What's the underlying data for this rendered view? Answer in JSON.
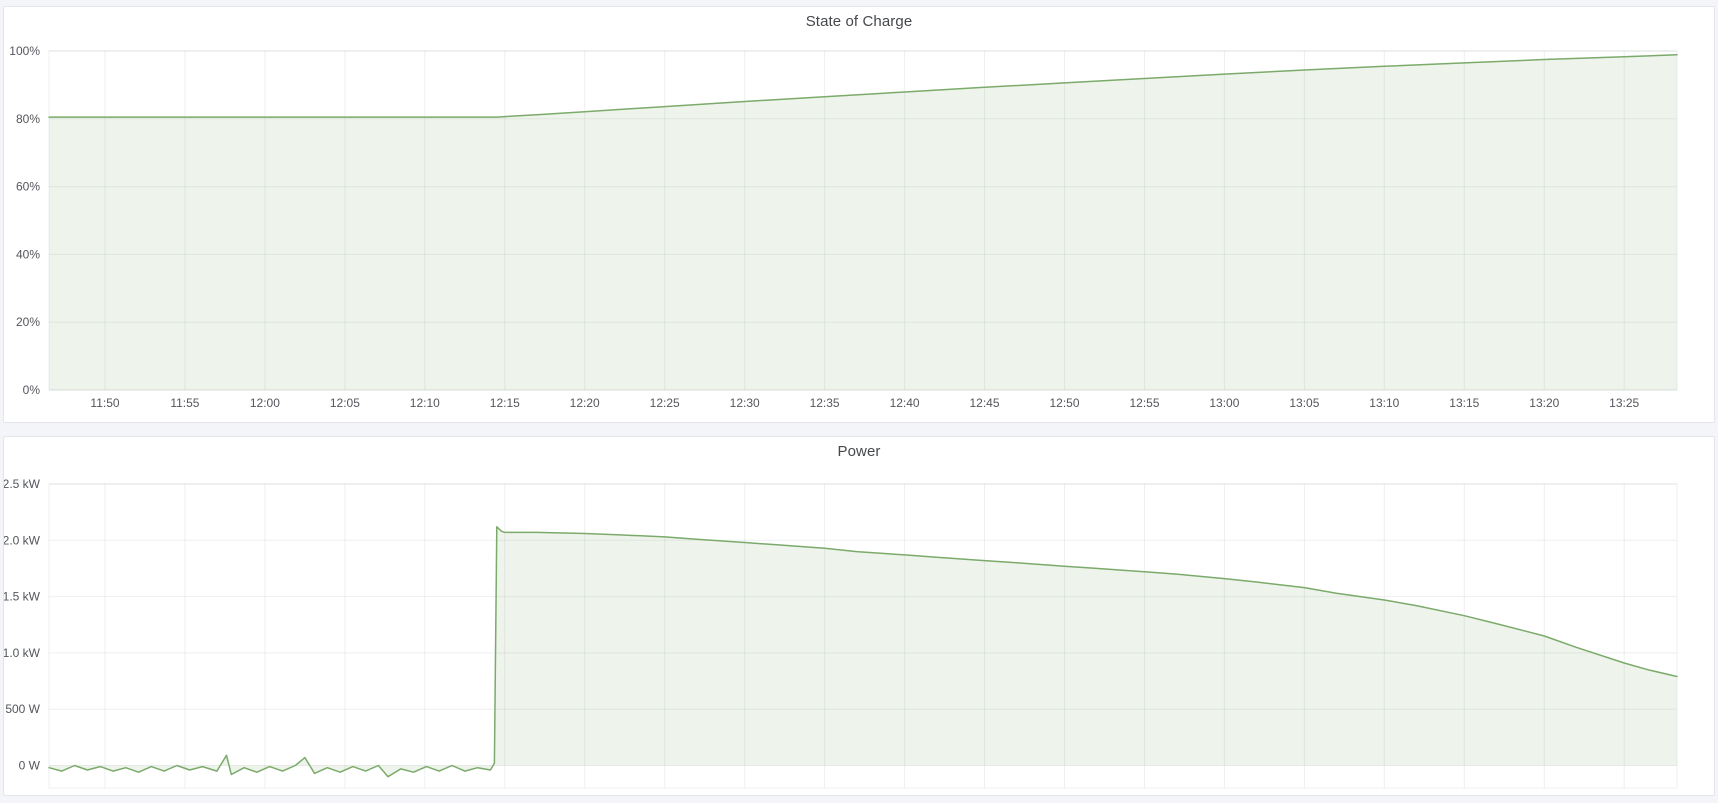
{
  "panels": [
    {
      "title": "State of Charge"
    },
    {
      "title": "Power"
    }
  ],
  "colors": {
    "line_green": "#7baa6b",
    "fill_green": "rgba(120,169,103,0.13)",
    "grid": "rgba(20,30,40,0.07)",
    "axis_text": "#54565c",
    "panel_bg": "#ffffff",
    "page_bg": "#f4f5f9",
    "panel_border": "#e4e5ea"
  },
  "chart_data": [
    {
      "type": "area",
      "title": "State of Charge",
      "xlabel": "",
      "ylabel": "",
      "unit": "percent",
      "legend": "none",
      "grid": true,
      "x_domain_minutes": [
        706.5,
        808.3
      ],
      "y_domain": [
        0,
        100
      ],
      "y_ticks": [
        {
          "value": 0,
          "label": "0%"
        },
        {
          "value": 20,
          "label": "20%"
        },
        {
          "value": 40,
          "label": "40%"
        },
        {
          "value": 60,
          "label": "60%"
        },
        {
          "value": 80,
          "label": "80%"
        },
        {
          "value": 100,
          "label": "100%"
        }
      ],
      "x_ticks": [
        {
          "minute": 710,
          "label": "11:50"
        },
        {
          "minute": 715,
          "label": "11:55"
        },
        {
          "minute": 720,
          "label": "12:00"
        },
        {
          "minute": 725,
          "label": "12:05"
        },
        {
          "minute": 730,
          "label": "12:10"
        },
        {
          "minute": 735,
          "label": "12:15"
        },
        {
          "minute": 740,
          "label": "12:20"
        },
        {
          "minute": 745,
          "label": "12:25"
        },
        {
          "minute": 750,
          "label": "12:30"
        },
        {
          "minute": 755,
          "label": "12:35"
        },
        {
          "minute": 760,
          "label": "12:40"
        },
        {
          "minute": 765,
          "label": "12:45"
        },
        {
          "minute": 770,
          "label": "12:50"
        },
        {
          "minute": 775,
          "label": "12:55"
        },
        {
          "minute": 780,
          "label": "13:00"
        },
        {
          "minute": 785,
          "label": "13:05"
        },
        {
          "minute": 790,
          "label": "13:10"
        },
        {
          "minute": 795,
          "label": "13:15"
        },
        {
          "minute": 800,
          "label": "13:20"
        },
        {
          "minute": 805,
          "label": "13:25"
        }
      ],
      "series": [
        {
          "name": "state-of-charge",
          "points": [
            [
              706.5,
              80.5
            ],
            [
              710,
              80.5
            ],
            [
              715,
              80.5
            ],
            [
              720,
              80.5
            ],
            [
              725,
              80.5
            ],
            [
              730,
              80.5
            ],
            [
              734.5,
              80.5
            ],
            [
              737,
              81.2
            ],
            [
              740,
              82.1
            ],
            [
              745,
              83.6
            ],
            [
              750,
              85.1
            ],
            [
              755,
              86.5
            ],
            [
              760,
              87.9
            ],
            [
              765,
              89.3
            ],
            [
              770,
              90.6
            ],
            [
              775,
              91.9
            ],
            [
              780,
              93.2
            ],
            [
              785,
              94.4
            ],
            [
              790,
              95.5
            ],
            [
              795,
              96.5
            ],
            [
              800,
              97.5
            ],
            [
              805,
              98.3
            ],
            [
              808.3,
              98.9
            ]
          ]
        }
      ]
    },
    {
      "type": "area",
      "title": "Power",
      "xlabel": "",
      "ylabel": "",
      "unit": "watt",
      "legend": "none",
      "grid": true,
      "x_axis_labels_visible": false,
      "x_domain_minutes": [
        706.5,
        808.3
      ],
      "y_domain": [
        -0.2,
        2.5
      ],
      "y_ticks": [
        {
          "value": 0,
          "label": "0 W"
        },
        {
          "value": 0.5,
          "label": "500 W"
        },
        {
          "value": 1.0,
          "label": "1.0 kW"
        },
        {
          "value": 1.5,
          "label": "1.5 kW"
        },
        {
          "value": 2.0,
          "label": "2.0 kW"
        },
        {
          "value": 2.5,
          "label": "2.5 kW"
        }
      ],
      "x_ticks": [
        {
          "minute": 710,
          "label": "11:50"
        },
        {
          "minute": 715,
          "label": "11:55"
        },
        {
          "minute": 720,
          "label": "12:00"
        },
        {
          "minute": 725,
          "label": "12:05"
        },
        {
          "minute": 730,
          "label": "12:10"
        },
        {
          "minute": 735,
          "label": "12:15"
        },
        {
          "minute": 740,
          "label": "12:20"
        },
        {
          "minute": 745,
          "label": "12:25"
        },
        {
          "minute": 750,
          "label": "12:30"
        },
        {
          "minute": 755,
          "label": "12:35"
        },
        {
          "minute": 760,
          "label": "12:40"
        },
        {
          "minute": 765,
          "label": "12:45"
        },
        {
          "minute": 770,
          "label": "12:50"
        },
        {
          "minute": 775,
          "label": "12:55"
        },
        {
          "minute": 780,
          "label": "13:00"
        },
        {
          "minute": 785,
          "label": "13:05"
        },
        {
          "minute": 790,
          "label": "13:10"
        },
        {
          "minute": 795,
          "label": "13:15"
        },
        {
          "minute": 800,
          "label": "13:20"
        },
        {
          "minute": 805,
          "label": "13:25"
        }
      ],
      "series": [
        {
          "name": "power",
          "points": [
            [
              706.5,
              -0.02
            ],
            [
              707.3,
              -0.05
            ],
            [
              708.1,
              0.0
            ],
            [
              708.9,
              -0.04
            ],
            [
              709.7,
              -0.01
            ],
            [
              710.5,
              -0.05
            ],
            [
              711.3,
              -0.02
            ],
            [
              712.1,
              -0.06
            ],
            [
              712.9,
              -0.01
            ],
            [
              713.7,
              -0.05
            ],
            [
              714.5,
              0.0
            ],
            [
              715.3,
              -0.04
            ],
            [
              716.1,
              -0.01
            ],
            [
              717.0,
              -0.05
            ],
            [
              717.6,
              0.09
            ],
            [
              717.9,
              -0.08
            ],
            [
              718.7,
              -0.02
            ],
            [
              719.5,
              -0.06
            ],
            [
              720.3,
              -0.01
            ],
            [
              721.1,
              -0.05
            ],
            [
              721.9,
              0.0
            ],
            [
              722.5,
              0.07
            ],
            [
              723.1,
              -0.07
            ],
            [
              723.9,
              -0.02
            ],
            [
              724.7,
              -0.06
            ],
            [
              725.5,
              -0.01
            ],
            [
              726.3,
              -0.05
            ],
            [
              727.1,
              0.0
            ],
            [
              727.7,
              -0.1
            ],
            [
              728.5,
              -0.03
            ],
            [
              729.3,
              -0.06
            ],
            [
              730.1,
              -0.01
            ],
            [
              730.9,
              -0.05
            ],
            [
              731.7,
              0.0
            ],
            [
              732.5,
              -0.05
            ],
            [
              733.3,
              -0.02
            ],
            [
              734.1,
              -0.04
            ],
            [
              734.35,
              0.02
            ],
            [
              734.5,
              2.12
            ],
            [
              734.8,
              2.08
            ],
            [
              735,
              2.07
            ],
            [
              737,
              2.07
            ],
            [
              740,
              2.06
            ],
            [
              742,
              2.05
            ],
            [
              745,
              2.03
            ],
            [
              747,
              2.01
            ],
            [
              750,
              1.98
            ],
            [
              752,
              1.96
            ],
            [
              755,
              1.93
            ],
            [
              757,
              1.9
            ],
            [
              760,
              1.87
            ],
            [
              762,
              1.85
            ],
            [
              765,
              1.82
            ],
            [
              767,
              1.8
            ],
            [
              770,
              1.77
            ],
            [
              772,
              1.75
            ],
            [
              775,
              1.72
            ],
            [
              777,
              1.7
            ],
            [
              780,
              1.66
            ],
            [
              782,
              1.63
            ],
            [
              785,
              1.58
            ],
            [
              787,
              1.53
            ],
            [
              790,
              1.47
            ],
            [
              792,
              1.42
            ],
            [
              795,
              1.33
            ],
            [
              797,
              1.26
            ],
            [
              800,
              1.15
            ],
            [
              802,
              1.05
            ],
            [
              805,
              0.91
            ],
            [
              806.5,
              0.85
            ],
            [
              808.3,
              0.79
            ]
          ]
        }
      ]
    }
  ]
}
